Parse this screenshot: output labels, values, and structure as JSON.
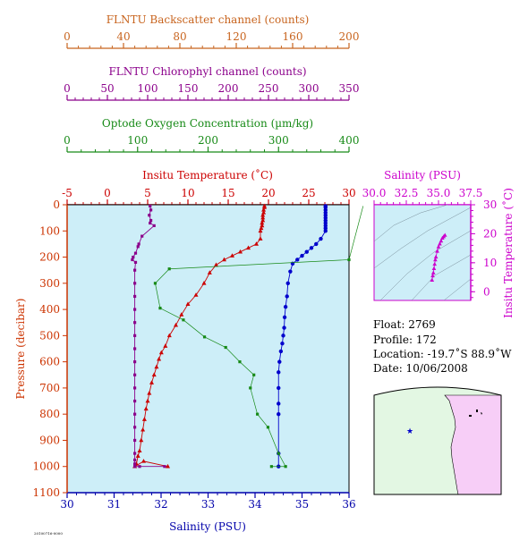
{
  "axes": {
    "backscatter": {
      "title": "FLNTU Backscatter channel (counts)",
      "color": "#c8641e",
      "ticks": [
        "0",
        "40",
        "80",
        "120",
        "160",
        "200"
      ],
      "range": [
        0,
        200
      ]
    },
    "chlorophyll": {
      "title": "FLNTU Chlorophyl channel (counts)",
      "color": "#8b008b",
      "ticks": [
        "0",
        "50",
        "100",
        "150",
        "200",
        "250",
        "300",
        "350"
      ],
      "range": [
        0,
        350
      ]
    },
    "oxygen": {
      "title": "Optode Oxygen Concentration (µm/kg)",
      "color": "#178a17",
      "ticks": [
        "0",
        "100",
        "200",
        "300",
        "400"
      ],
      "range": [
        0,
        400
      ]
    },
    "temperature": {
      "title": "Insitu Temperature (˚C)",
      "color": "#cc0000",
      "ticks": [
        "-5",
        "0",
        "5",
        "10",
        "15",
        "20",
        "25",
        "30"
      ],
      "range": [
        -5,
        30
      ]
    },
    "salinity": {
      "title": "Salinity (PSU)",
      "color": "#0000aa",
      "ticks": [
        "30",
        "31",
        "32",
        "33",
        "34",
        "35",
        "36"
      ],
      "range": [
        30,
        36
      ]
    },
    "pressure": {
      "title": "Pressure (decibar)",
      "color": "#cc3300",
      "ticks": [
        "0",
        "100",
        "200",
        "300",
        "400",
        "500",
        "600",
        "700",
        "800",
        "900",
        "1000",
        "1100"
      ],
      "range": [
        0,
        1100
      ]
    }
  },
  "ts_diagram": {
    "title": "Salinity (PSU)",
    "ylabel": "Insitu Temperature (˚C)",
    "color": "#cc00cc",
    "xticks": [
      "30.0",
      "32.5",
      "35.0",
      "37.5"
    ],
    "xrange": [
      30,
      37.5
    ],
    "yticks": [
      "30",
      "20",
      "10",
      "0"
    ],
    "yrange": [
      -3,
      30
    ]
  },
  "info": {
    "float": "Float:  2769",
    "profile": "Profile:  172",
    "location": "Location:  -19.7˚S  88.9˚W",
    "date": "Date:  10/06/2008"
  },
  "footer_tag": "20100716-0000",
  "chart_data": [
    {
      "type": "line",
      "title": "",
      "ylabel": "Pressure (decibar)",
      "series": [
        {
          "name": "Insitu Temperature (˚C)",
          "color": "#cc0000",
          "x": [
            19.5,
            19.5,
            19.4,
            19.4,
            19.3,
            19.3,
            19.3,
            19.2,
            19.2,
            19.1,
            19.0,
            19.0,
            18.5,
            17.5,
            16.5,
            15.5,
            14.5,
            13.5,
            12.7,
            12.0,
            11.0,
            10.0,
            9.2,
            8.5,
            7.7,
            7.2,
            6.7,
            6.4,
            6.1,
            5.8,
            5.5,
            5.2,
            5.0,
            4.8,
            4.6,
            4.4,
            4.2,
            4.0,
            3.8,
            3.6,
            3.4,
            4.5,
            7.5
          ],
          "y": [
            5,
            10,
            20,
            30,
            40,
            50,
            60,
            70,
            80,
            90,
            100,
            130,
            150,
            165,
            180,
            195,
            210,
            230,
            260,
            300,
            345,
            380,
            420,
            460,
            500,
            540,
            565,
            590,
            620,
            650,
            680,
            720,
            750,
            780,
            820,
            860,
            900,
            940,
            960,
            990,
            1000,
            980,
            1000
          ]
        },
        {
          "name": "Salinity (PSU)",
          "color": "#0000cc",
          "x": [
            35.5,
            35.5,
            35.5,
            35.5,
            35.5,
            35.5,
            35.5,
            35.5,
            35.5,
            35.5,
            35.5,
            35.4,
            35.3,
            35.2,
            35.1,
            35.0,
            34.9,
            34.8,
            34.75,
            34.7,
            34.68,
            34.65,
            34.63,
            34.62,
            34.6,
            34.58,
            34.55,
            34.52,
            34.5,
            34.5,
            34.5,
            34.5,
            34.5,
            34.5
          ],
          "y": [
            5,
            10,
            20,
            30,
            40,
            50,
            60,
            70,
            80,
            90,
            100,
            130,
            150,
            165,
            180,
            195,
            210,
            225,
            255,
            300,
            350,
            390,
            430,
            470,
            500,
            530,
            560,
            600,
            640,
            700,
            760,
            800,
            950,
            1000
          ]
        },
        {
          "name": "Optode Oxygen Concentration (µm/kg)",
          "color": "#178a17",
          "x": [
            420,
            400,
            145,
            125,
            132,
            165,
            195,
            225,
            245,
            265,
            260,
            270,
            285,
            300,
            310,
            290
          ],
          "y": [
            5,
            210,
            245,
            300,
            395,
            440,
            505,
            545,
            600,
            650,
            700,
            800,
            850,
            950,
            1000,
            1000
          ]
        },
        {
          "name": "FLNTU Chlorophyl channel (counts)",
          "color": "#8b008b",
          "x": [
            103,
            104,
            102,
            104,
            103,
            108,
            93,
            89,
            88,
            85,
            82,
            81,
            85,
            84,
            84,
            84,
            84,
            84,
            84,
            84,
            84,
            84,
            84,
            84,
            84,
            84,
            84,
            84,
            84,
            84,
            84,
            90,
            121
          ],
          "y": [
            5,
            20,
            40,
            60,
            70,
            80,
            120,
            150,
            160,
            185,
            200,
            210,
            220,
            250,
            300,
            350,
            400,
            450,
            500,
            550,
            600,
            650,
            700,
            750,
            800,
            850,
            900,
            950,
            975,
            990,
            1000,
            1000,
            1000
          ]
        }
      ],
      "xlim_temperature": [
        -5,
        30
      ],
      "xlim_salinity": [
        30,
        36
      ],
      "xlim_oxygen": [
        0,
        400
      ],
      "xlim_chlorophyll": [
        0,
        350
      ],
      "xlim_backscatter": [
        0,
        200
      ],
      "ylim": [
        1100,
        0
      ],
      "grid": false
    },
    {
      "type": "scatter",
      "title": "Salinity (PSU)",
      "xlabel": "Salinity (PSU)",
      "ylabel": "Insitu Temperature (˚C)",
      "x": [
        35.5,
        35.4,
        35.3,
        35.2,
        35.1,
        35.0,
        34.9,
        34.8,
        34.75,
        34.7,
        34.65,
        34.6,
        34.55,
        34.5
      ],
      "y": [
        19.5,
        19.0,
        18.5,
        17.5,
        16.5,
        15.5,
        14.0,
        12.0,
        11.0,
        9.5,
        8.0,
        6.5,
        5.5,
        4.0
      ],
      "xlim": [
        30,
        37.5
      ],
      "ylim": [
        -3,
        30
      ]
    }
  ]
}
